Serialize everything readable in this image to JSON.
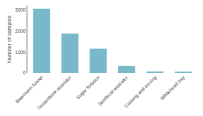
{
  "chart_data": {
    "type": "bar",
    "categories": [
      "Baermann funnel",
      "Oostenbrink elutriator",
      "Sugar flotation",
      "Seinhrost elutriator",
      "Cooking and sieving",
      "Whitehead tray"
    ],
    "values": [
      3050,
      1870,
      1150,
      330,
      75,
      70
    ],
    "color": "#78b8c8",
    "ylabel": "Number of samples",
    "ylim": [
      0,
      3200
    ],
    "yticks": [
      0,
      1000,
      2000,
      3000
    ],
    "grid": false
  }
}
